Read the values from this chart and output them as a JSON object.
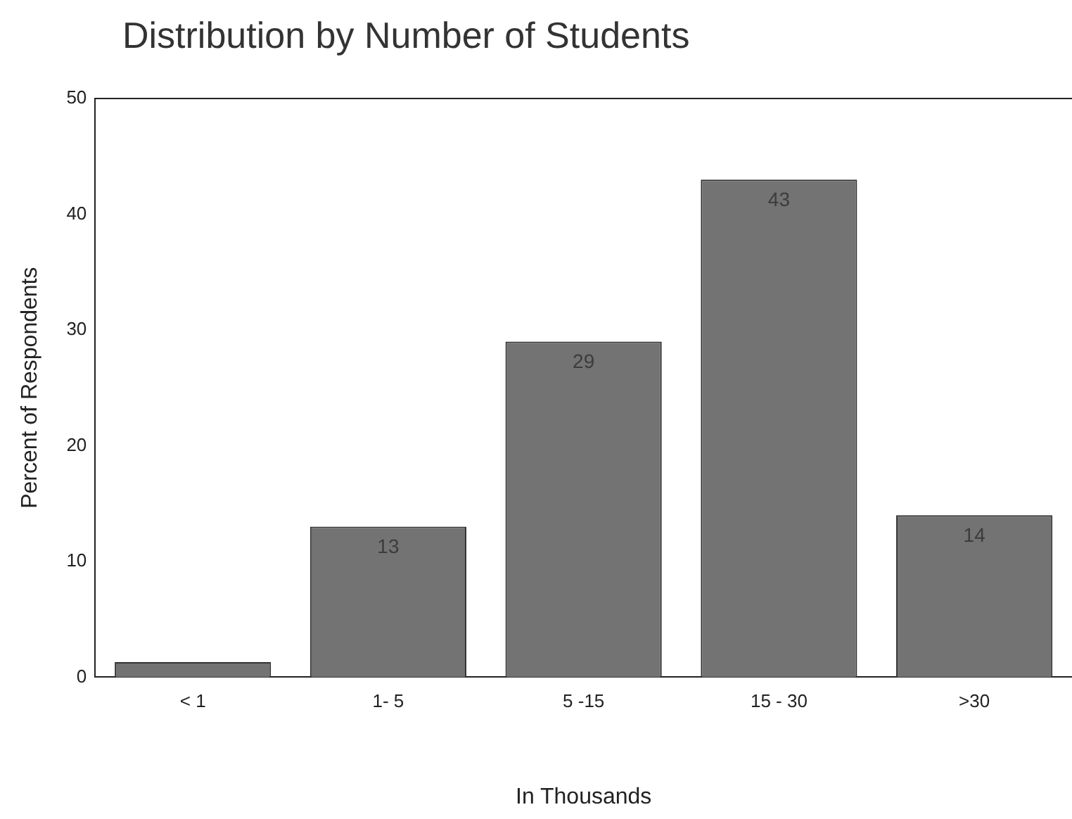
{
  "chart_data": {
    "type": "bar",
    "title": "Distribution by Number of Students",
    "xlabel": "In Thousands",
    "ylabel": "Percent of Respondents",
    "categories": [
      "< 1",
      "1- 5",
      "5 -15",
      "15 - 30",
      ">30"
    ],
    "values": [
      1.3,
      13,
      29,
      43,
      14
    ],
    "value_labels": [
      null,
      "13",
      "29",
      "43",
      "14"
    ],
    "color": "#737373",
    "ylim": [
      0,
      50
    ],
    "yticks": [
      0,
      10,
      20,
      30,
      40,
      50
    ],
    "grid": false
  }
}
